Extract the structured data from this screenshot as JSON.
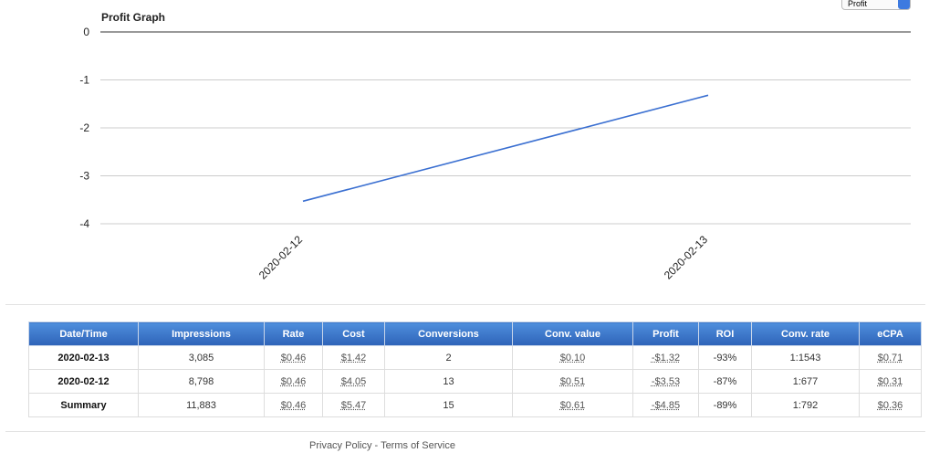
{
  "chart_data": {
    "type": "line",
    "title": "Profit Graph",
    "categories": [
      "2020-02-12",
      "2020-02-13"
    ],
    "series": [
      {
        "color": "#3a6fd1",
        "values": [
          -3.53,
          -1.32
        ]
      }
    ],
    "ylim": [
      -4,
      0
    ],
    "yticks": [
      0,
      -1,
      -2,
      -3,
      -4
    ],
    "grid": true
  },
  "selector": {
    "value": "Profit"
  },
  "table": {
    "columns": [
      "Date/Time",
      "Impressions",
      "Rate",
      "Cost",
      "Conversions",
      "Conv. value",
      "Profit",
      "ROI",
      "Conv. rate",
      "eCPA"
    ],
    "rows": [
      [
        "2020-02-13",
        "3,085",
        "$0.46",
        "$1.42",
        "2",
        "$0.10",
        "-$1.32",
        "-93%",
        "1:1543",
        "$0.71"
      ],
      [
        "2020-02-12",
        "8,798",
        "$0.46",
        "$4.05",
        "13",
        "$0.51",
        "-$3.53",
        "-87%",
        "1:677",
        "$0.31"
      ],
      [
        "Summary",
        "11,883",
        "$0.46",
        "$5.47",
        "15",
        "$0.61",
        "-$4.85",
        "-89%",
        "1:792",
        "$0.36"
      ]
    ]
  },
  "footer": {
    "privacy": "Privacy Policy",
    "separator": "-",
    "terms": "Terms of Service"
  }
}
